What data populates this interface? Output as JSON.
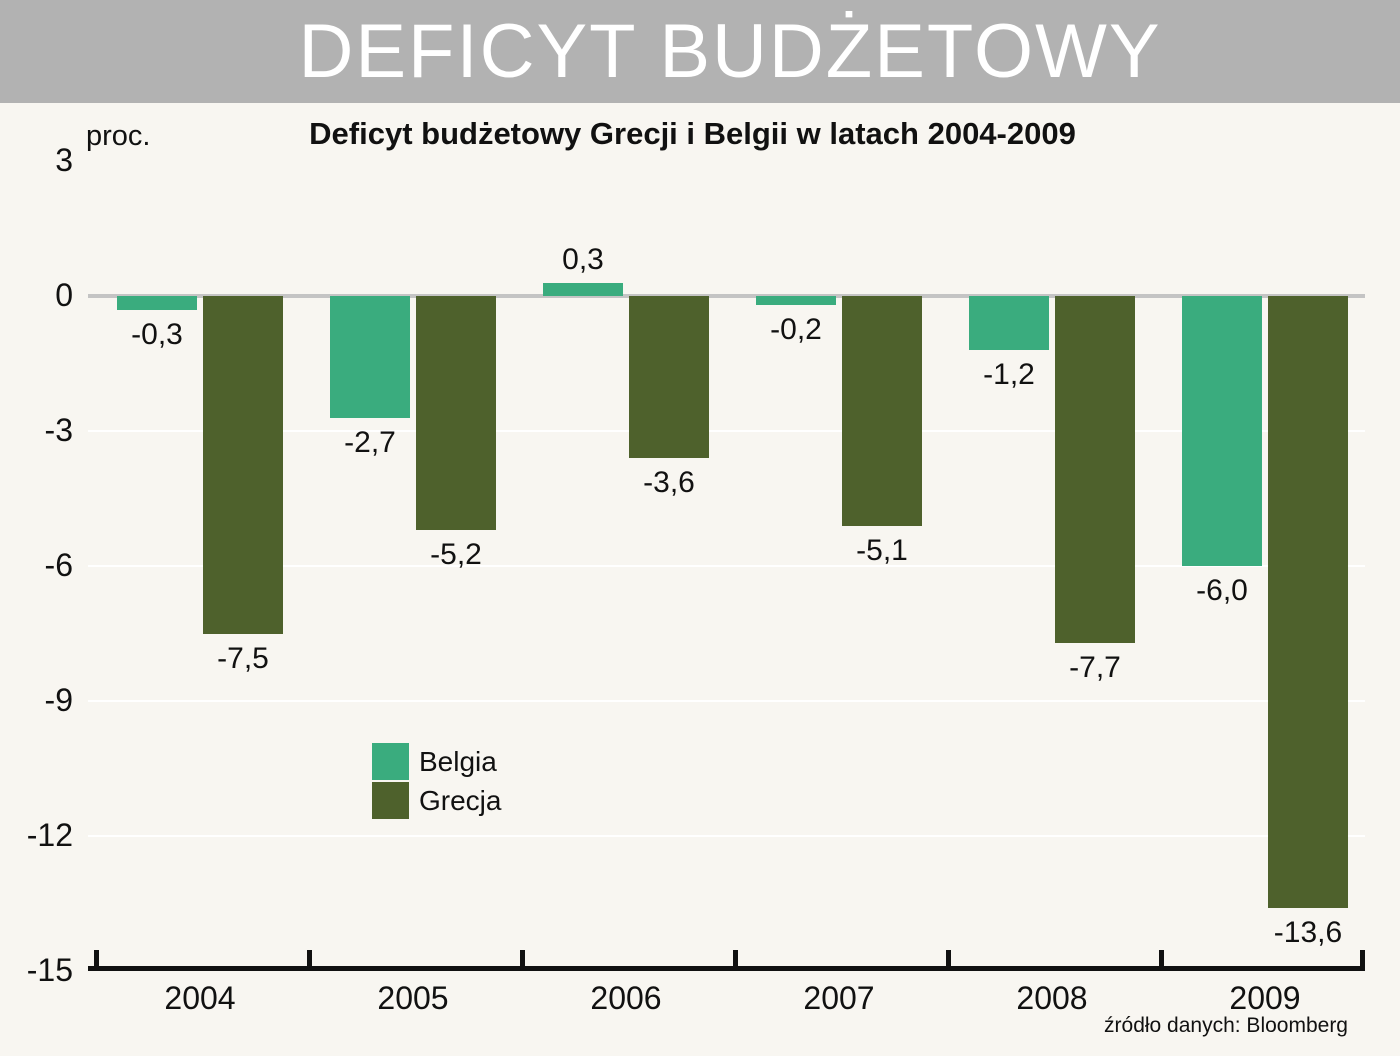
{
  "banner": {
    "title": "DEFICYT BUDŻETOWY"
  },
  "chart": {
    "unit_label": "proc.",
    "source": "źródło danych: Bloomberg"
  },
  "chart_data": {
    "type": "bar",
    "title": "Deficyt budżetowy Grecji i Belgii w latach 2004-2009",
    "categories": [
      "2004",
      "2005",
      "2006",
      "2007",
      "2008",
      "2009"
    ],
    "series": [
      {
        "name": "Belgia",
        "color": "#3aac7e",
        "values": [
          -0.3,
          -2.7,
          0.3,
          -0.2,
          -1.2,
          -6.0
        ],
        "labels": [
          "-0,3",
          "-2,7",
          "0,3",
          "-0,2",
          "-1,2",
          "-6,0"
        ]
      },
      {
        "name": "Grecja",
        "color": "#4e612c",
        "values": [
          -7.5,
          -5.2,
          -3.6,
          -5.1,
          -7.7,
          -13.6
        ],
        "labels": [
          "-7,5",
          "-5,2",
          "-3,6",
          "-5,1",
          "-7,7",
          "-13,6"
        ]
      }
    ],
    "ylabel": "proc.",
    "ylim": [
      -15,
      3
    ],
    "yticks": [
      3,
      0,
      -3,
      -6,
      -9,
      -12,
      -15
    ],
    "ytick_labels": [
      "3",
      "0",
      "-3",
      "-6",
      "-9",
      "-12",
      "-15"
    ],
    "grid": true,
    "legend_position": "inside-left-bottom",
    "source": "źródło danych: Bloomberg"
  }
}
